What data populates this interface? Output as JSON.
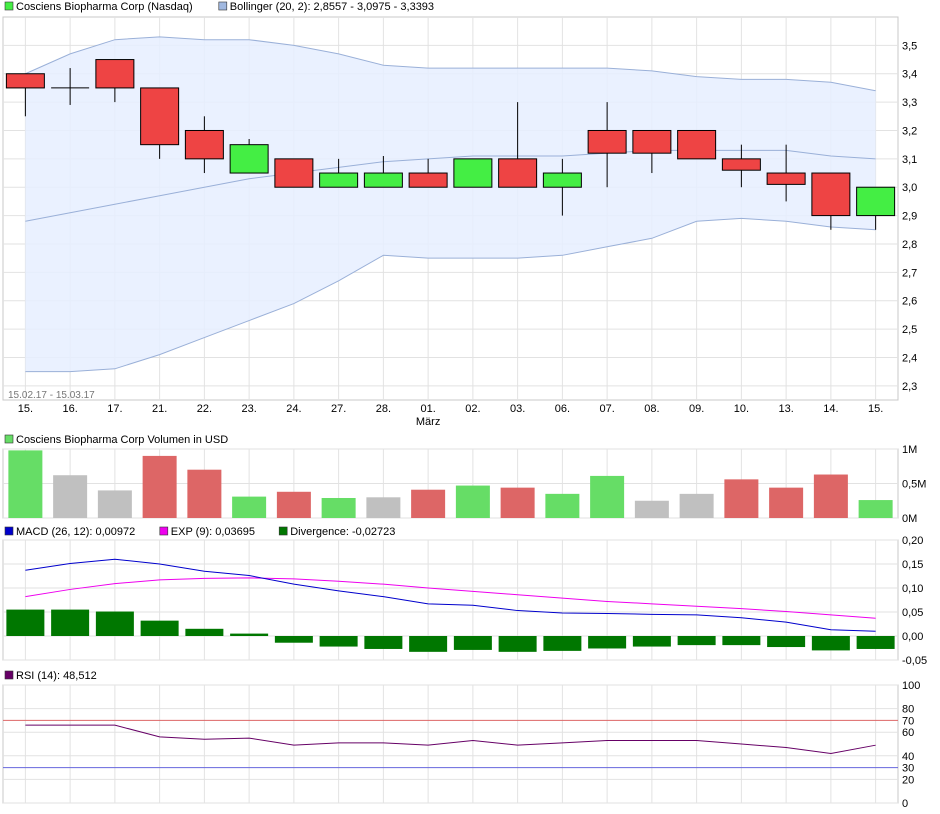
{
  "chart_data": [
    {
      "type": "candlestick",
      "legend": [
        {
          "label": "Cosciens Biopharma Corp (Nasdaq)",
          "color": "#44ee44"
        },
        {
          "label": "Bollinger (20, 2): 2,8557 - 3,0975 - 3,3393",
          "color": "#a0b8e0"
        }
      ],
      "date_range_label": "15.02.17 - 15.03.17",
      "month_label": "März",
      "categories": [
        "15.",
        "16.",
        "17.",
        "21.",
        "22.",
        "23.",
        "24.",
        "27.",
        "28.",
        "01.",
        "02.",
        "03.",
        "06.",
        "07.",
        "08.",
        "09.",
        "10.",
        "13.",
        "14.",
        "15."
      ],
      "ylim": [
        2.25,
        3.6
      ],
      "yticks": [
        {
          "v": 2.3,
          "label": "2,3"
        },
        {
          "v": 2.4,
          "label": "2,4"
        },
        {
          "v": 2.5,
          "label": "2,5"
        },
        {
          "v": 2.6,
          "label": "2,6"
        },
        {
          "v": 2.7,
          "label": "2,7"
        },
        {
          "v": 2.8,
          "label": "2,8"
        },
        {
          "v": 2.9,
          "label": "2,9"
        },
        {
          "v": 3.0,
          "label": "3,0"
        },
        {
          "v": 3.1,
          "label": "3,1"
        },
        {
          "v": 3.2,
          "label": "3,2"
        },
        {
          "v": 3.3,
          "label": "3,3"
        },
        {
          "v": 3.4,
          "label": "3,4"
        },
        {
          "v": 3.5,
          "label": "3,5"
        }
      ],
      "ohlc": [
        {
          "o": 3.35,
          "h": 3.4,
          "l": 3.25,
          "c": 3.4
        },
        {
          "o": 3.35,
          "h": 3.42,
          "l": 3.29,
          "c": 3.35
        },
        {
          "o": 3.45,
          "h": 3.45,
          "l": 3.3,
          "c": 3.35
        },
        {
          "o": 3.35,
          "h": 3.35,
          "l": 3.1,
          "c": 3.15
        },
        {
          "o": 3.2,
          "h": 3.25,
          "l": 3.05,
          "c": 3.1
        },
        {
          "o": 3.05,
          "h": 3.17,
          "l": 3.05,
          "c": 3.15
        },
        {
          "o": 3.1,
          "h": 3.1,
          "l": 3.0,
          "c": 3.0
        },
        {
          "o": 3.0,
          "h": 3.1,
          "l": 3.0,
          "c": 3.05
        },
        {
          "o": 3.0,
          "h": 3.11,
          "l": 3.0,
          "c": 3.05
        },
        {
          "o": 3.05,
          "h": 3.1,
          "l": 3.0,
          "c": 3.0
        },
        {
          "o": 3.0,
          "h": 3.1,
          "l": 3.0,
          "c": 3.1
        },
        {
          "o": 3.1,
          "h": 3.3,
          "l": 3.0,
          "c": 3.0
        },
        {
          "o": 3.0,
          "h": 3.1,
          "l": 2.9,
          "c": 3.05
        },
        {
          "o": 3.2,
          "h": 3.3,
          "l": 3.0,
          "c": 3.12
        },
        {
          "o": 3.2,
          "h": 3.2,
          "l": 3.05,
          "c": 3.12
        },
        {
          "o": 3.2,
          "h": 3.2,
          "l": 3.1,
          "c": 3.1
        },
        {
          "o": 3.1,
          "h": 3.15,
          "l": 3.0,
          "c": 3.06
        },
        {
          "o": 3.05,
          "h": 3.15,
          "l": 2.95,
          "c": 3.01
        },
        {
          "o": 3.05,
          "h": 3.05,
          "l": 2.85,
          "c": 2.9
        },
        {
          "o": 2.9,
          "h": 3.0,
          "l": 2.85,
          "c": 3.0
        }
      ],
      "candle_colors": [
        "red",
        "black",
        "red",
        "red",
        "red",
        "green",
        "red",
        "green",
        "green",
        "red",
        "green",
        "red",
        "green",
        "red",
        "red",
        "red",
        "red",
        "red",
        "red",
        "green"
      ],
      "bollinger_upper": [
        3.4,
        3.47,
        3.52,
        3.53,
        3.52,
        3.52,
        3.5,
        3.47,
        3.43,
        3.42,
        3.42,
        3.42,
        3.42,
        3.42,
        3.41,
        3.39,
        3.38,
        3.38,
        3.37,
        3.34
      ],
      "bollinger_middle": [
        2.88,
        2.91,
        2.94,
        2.97,
        3.0,
        3.03,
        3.05,
        3.07,
        3.09,
        3.1,
        3.11,
        3.11,
        3.11,
        3.12,
        3.13,
        3.13,
        3.13,
        3.13,
        3.11,
        3.1
      ],
      "bollinger_lower": [
        2.35,
        2.35,
        2.36,
        2.41,
        2.47,
        2.53,
        2.59,
        2.67,
        2.76,
        2.75,
        2.75,
        2.75,
        2.76,
        2.79,
        2.82,
        2.88,
        2.89,
        2.88,
        2.86,
        2.85
      ]
    },
    {
      "type": "bar",
      "legend": [
        {
          "label": "Cosciens Biopharma Corp Volumen in USD",
          "color": "#66dd66"
        }
      ],
      "ylim": [
        0,
        1.0
      ],
      "yticks": [
        {
          "v": 0,
          "label": "0M"
        },
        {
          "v": 0.5,
          "label": "0,5M"
        },
        {
          "v": 1.0,
          "label": "1M"
        }
      ],
      "values": [
        0.98,
        0.62,
        0.4,
        0.9,
        0.7,
        0.31,
        0.38,
        0.29,
        0.3,
        0.41,
        0.47,
        0.44,
        0.35,
        0.61,
        0.25,
        0.35,
        0.56,
        0.44,
        0.63,
        0.26
      ],
      "colors": [
        "#66dd66",
        "#c0c0c0",
        "#c0c0c0",
        "#dd6666",
        "#dd6666",
        "#66dd66",
        "#dd6666",
        "#66dd66",
        "#c0c0c0",
        "#dd6666",
        "#66dd66",
        "#dd6666",
        "#66dd66",
        "#66dd66",
        "#c0c0c0",
        "#c0c0c0",
        "#dd6666",
        "#dd6666",
        "#dd6666",
        "#66dd66"
      ]
    },
    {
      "type": "line",
      "legend": [
        {
          "label": "MACD (26, 12): 0,00972",
          "color": "#0000cc"
        },
        {
          "label": "EXP (9): 0,03695",
          "color": "#ee00ee"
        },
        {
          "label": "Divergence: -0,02723",
          "color": "#007700"
        }
      ],
      "ylim": [
        -0.05,
        0.2
      ],
      "yticks": [
        {
          "v": -0.05,
          "label": "-0,05"
        },
        {
          "v": 0.0,
          "label": "0,00"
        },
        {
          "v": 0.05,
          "label": "0,05"
        },
        {
          "v": 0.1,
          "label": "0,10"
        },
        {
          "v": 0.15,
          "label": "0,15"
        },
        {
          "v": 0.2,
          "label": "0,20"
        }
      ],
      "macd": [
        0.137,
        0.151,
        0.16,
        0.15,
        0.135,
        0.126,
        0.108,
        0.094,
        0.082,
        0.067,
        0.064,
        0.053,
        0.048,
        0.047,
        0.045,
        0.044,
        0.038,
        0.029,
        0.013,
        0.01
      ],
      "signal": [
        0.082,
        0.097,
        0.109,
        0.117,
        0.12,
        0.121,
        0.119,
        0.114,
        0.108,
        0.1,
        0.093,
        0.086,
        0.079,
        0.072,
        0.067,
        0.062,
        0.057,
        0.051,
        0.044,
        0.037
      ],
      "divergence": [
        0.055,
        0.055,
        0.051,
        0.032,
        0.015,
        0.005,
        -0.014,
        -0.022,
        -0.027,
        -0.033,
        -0.029,
        -0.033,
        -0.031,
        -0.026,
        -0.022,
        -0.019,
        -0.019,
        -0.023,
        -0.03,
        -0.027
      ]
    },
    {
      "type": "line",
      "legend": [
        {
          "label": "RSI (14): 48,512",
          "color": "#660066"
        }
      ],
      "ylim": [
        0,
        100
      ],
      "yticks": [
        {
          "v": 0,
          "label": "0"
        },
        {
          "v": 20,
          "label": "20"
        },
        {
          "v": 30,
          "label": "30"
        },
        {
          "v": 40,
          "label": "40"
        },
        {
          "v": 60,
          "label": "60"
        },
        {
          "v": 70,
          "label": "70"
        },
        {
          "v": 80,
          "label": "80"
        },
        {
          "v": 100,
          "label": "100"
        }
      ],
      "overbought": 70,
      "oversold": 30,
      "values": [
        66,
        66,
        66,
        56,
        54,
        55,
        49,
        51,
        51,
        49,
        53,
        49,
        51,
        53,
        53,
        53,
        50,
        47,
        42,
        49
      ]
    }
  ]
}
